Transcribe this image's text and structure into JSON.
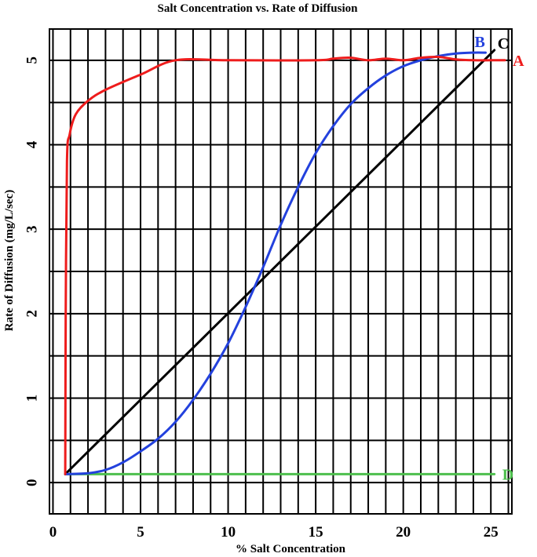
{
  "chart_data": {
    "type": "line",
    "title": "Salt Concentration vs. Rate of Diffusion",
    "xlabel": "% Salt Concentration",
    "ylabel": "Rate of Diffusion (mg/L/sec)",
    "xlim": [
      -0.2,
      26.2
    ],
    "ylim": [
      -0.37,
      5.37
    ],
    "grid": true,
    "x_ticks": [
      0,
      5,
      10,
      15,
      20,
      25
    ],
    "y_ticks": [
      0,
      1,
      2,
      3,
      4,
      5
    ],
    "series": [
      {
        "name": "A",
        "color": "#ee1c1c",
        "x": [
          0.7,
          0.73,
          0.8,
          0.95,
          1.3,
          2.0,
          3.0,
          5.0,
          7.0,
          10.0,
          15.0,
          16.0,
          17.0,
          18.0,
          19.0,
          20.0,
          21.0,
          22.0,
          23.0,
          24.0,
          25.0,
          25.8
        ],
        "y": [
          0.1,
          2.0,
          3.8,
          4.12,
          4.36,
          4.52,
          4.65,
          4.83,
          5.0,
          5.0,
          5.0,
          5.02,
          5.03,
          5.0,
          5.02,
          5.0,
          5.03,
          5.04,
          5.01,
          5.0,
          5.0,
          5.0
        ]
      },
      {
        "name": "B",
        "color": "#2341dd",
        "x": [
          0.7,
          2.0,
          3.0,
          4.0,
          5.0,
          6.0,
          7.0,
          8.0,
          9.0,
          10.0,
          11.0,
          12.0,
          13.0,
          14.0,
          15.0,
          16.0,
          17.0,
          18.0,
          19.0,
          20.0,
          21.0,
          22.0,
          23.0,
          24.0,
          24.7
        ],
        "y": [
          0.1,
          0.11,
          0.15,
          0.24,
          0.37,
          0.52,
          0.72,
          0.98,
          1.29,
          1.65,
          2.08,
          2.55,
          3.05,
          3.5,
          3.9,
          4.22,
          4.48,
          4.67,
          4.82,
          4.93,
          5.0,
          5.05,
          5.08,
          5.09,
          5.09
        ]
      },
      {
        "name": "C",
        "color": "#000000",
        "x": [
          0.7,
          25.2
        ],
        "y": [
          0.1,
          5.12
        ]
      },
      {
        "name": "D",
        "color": "#4dbf4d",
        "x": [
          0.7,
          25.2
        ],
        "y": [
          0.1,
          0.1
        ]
      }
    ]
  }
}
